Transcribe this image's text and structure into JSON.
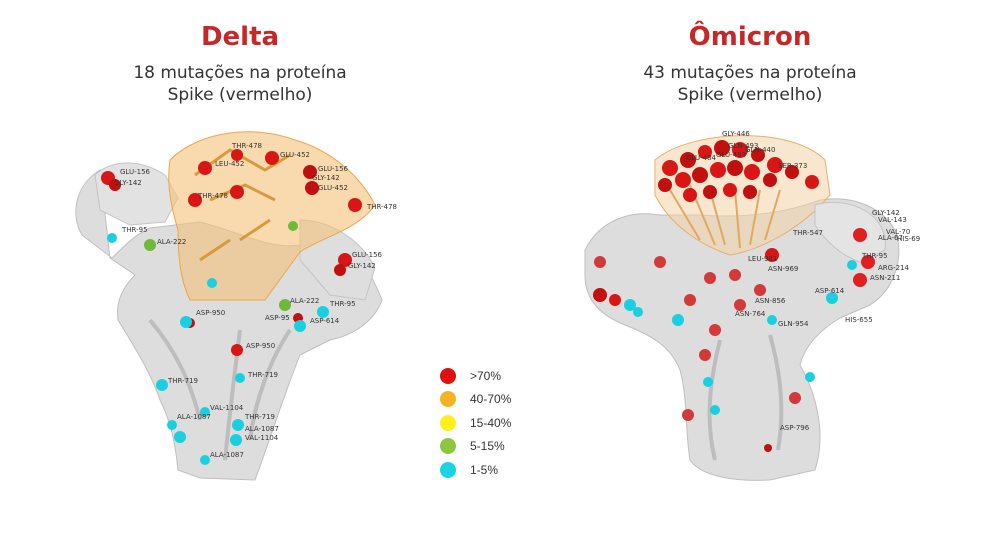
{
  "delta": {
    "title": "Delta",
    "subtitle_line1": "18 mutações na proteína",
    "subtitle_line2": "Spike (vermelho)",
    "labels": [
      "GLU-156",
      "GLY-142",
      "THR-478",
      "LEU-452",
      "GLU-452",
      "GLU-156",
      "GLY-142",
      "GLU-452",
      "THR-478",
      "THR-478",
      "THR-95",
      "ALA-222",
      "GLU-156",
      "GLY-142",
      "ALA-222",
      "THR-95",
      "ASP-950",
      "ASP-95",
      "ASP-614",
      "ASP-950",
      "THR-719",
      "THR-719",
      "VAL-1104",
      "ALA-1087",
      "THR-719",
      "ALA-1087",
      "VAL-1104",
      "ALA-1087"
    ]
  },
  "omicron": {
    "title": "Ômicron",
    "subtitle_line1": "43 mutações na proteína",
    "subtitle_line2": "Spike (vermelho)",
    "labels": [
      "GLY-446",
      "GLN-493",
      "GLN-440",
      "GLU-484",
      "GLU-493",
      "SER-373",
      "THR-547",
      "GLY-142",
      "VAL-143",
      "VAL-70",
      "ALA-67",
      "HIS-69",
      "THR-95",
      "ARG-214",
      "ASN-211",
      "LEU-981",
      "ASN-969",
      "ASP-614",
      "ASN-856",
      "ASN-764",
      "GLN-954",
      "HIS-655",
      "ASP-796"
    ]
  },
  "legend": [
    {
      "label": ">70%",
      "color": "#e01010"
    },
    {
      "label": "40-70%",
      "color": "#f5b324"
    },
    {
      "label": "15-40%",
      "color": "#ffef1a"
    },
    {
      "label": "5-15%",
      "color": "#8dc63f"
    },
    {
      "label": "1-5%",
      "color": "#1ad4e6"
    }
  ]
}
